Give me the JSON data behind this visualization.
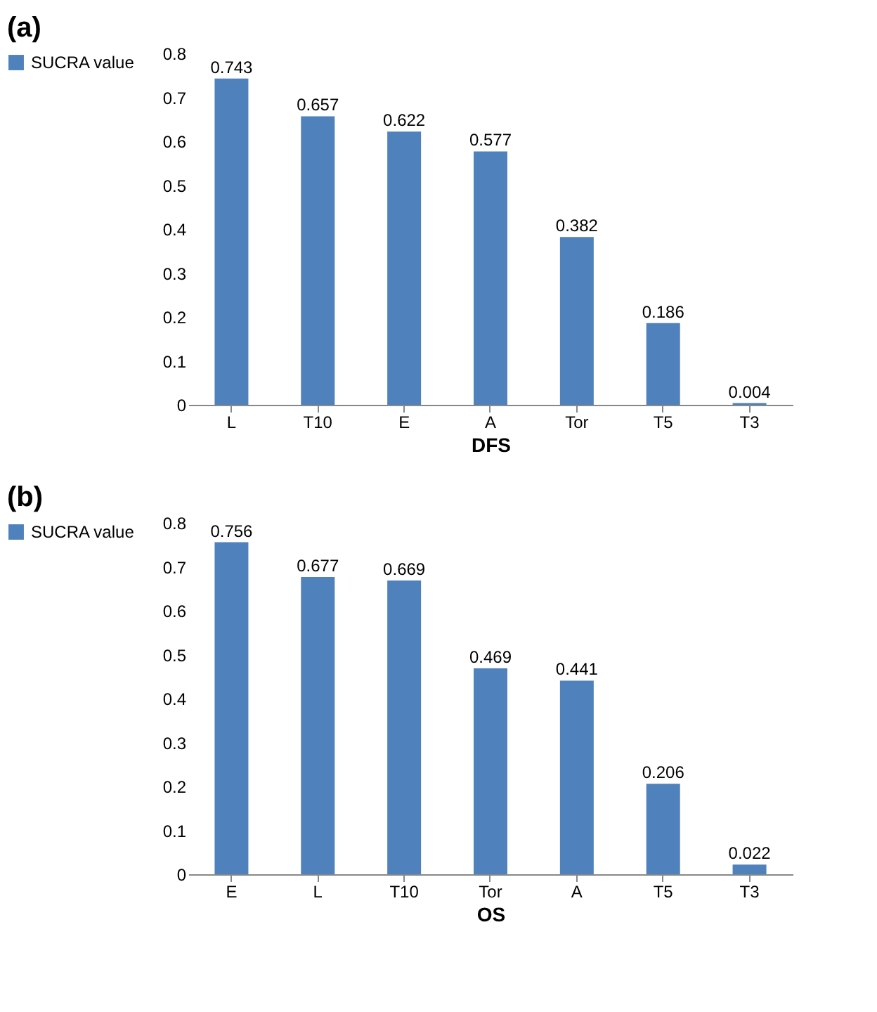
{
  "chart_data": [
    {
      "type": "bar",
      "title": "(a)",
      "xlabel": "DFS",
      "categories": [
        "L",
        "T10",
        "E",
        "A",
        "Tor",
        "T5",
        "T3"
      ],
      "series": [
        {
          "name": "SUCRA value",
          "color": "#4f81bd",
          "values": [
            0.743,
            0.657,
            0.622,
            0.577,
            0.382,
            0.186,
            0.004
          ]
        }
      ],
      "ylim": [
        0,
        0.8
      ],
      "yticks": [
        0,
        0.1,
        0.2,
        0.3,
        0.4,
        0.5,
        0.6,
        0.7,
        0.8
      ],
      "data_labels": true,
      "legend": "left",
      "grid": false
    },
    {
      "type": "bar",
      "title": "(b)",
      "xlabel": "OS",
      "categories": [
        "E",
        "L",
        "T10",
        "Tor",
        "A",
        "T5",
        "T3"
      ],
      "series": [
        {
          "name": "SUCRA value",
          "color": "#4f81bd",
          "values": [
            0.756,
            0.677,
            0.669,
            0.469,
            0.441,
            0.206,
            0.022
          ]
        }
      ],
      "ylim": [
        0,
        0.8
      ],
      "yticks": [
        0,
        0.1,
        0.2,
        0.3,
        0.4,
        0.5,
        0.6,
        0.7,
        0.8
      ],
      "data_labels": true,
      "legend": "left",
      "grid": false
    }
  ]
}
